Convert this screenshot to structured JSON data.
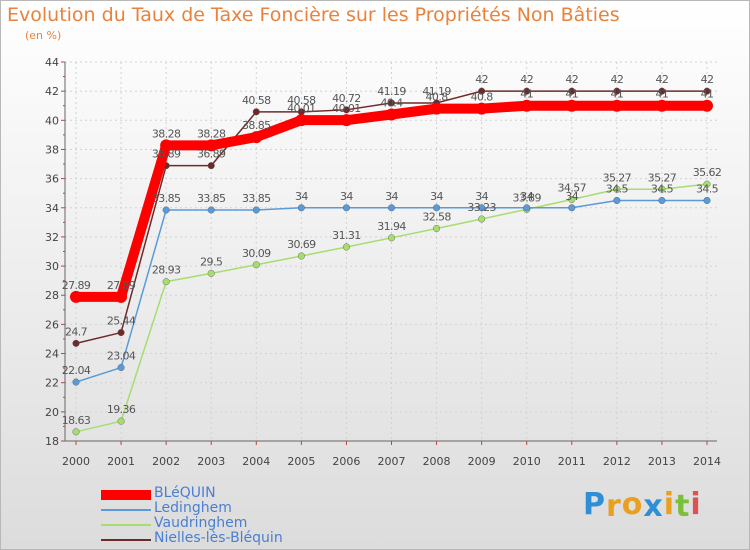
{
  "chart_data": {
    "type": "line",
    "title": "Evolution du Taux de Taxe Foncière sur les Propriétés Non Bâties",
    "unit_label": "(en %)",
    "xlabel": "",
    "ylabel": "",
    "ylim": [
      18,
      44
    ],
    "y_ticks": [
      "18",
      "20",
      "22",
      "24",
      "26",
      "28",
      "30",
      "32",
      "34",
      "36",
      "38",
      "40",
      "42",
      "44"
    ],
    "x": [
      "2000",
      "2001",
      "2002",
      "2003",
      "2004",
      "2005",
      "2006",
      "2007",
      "2008",
      "2009",
      "2010",
      "2011",
      "2012",
      "2013",
      "2014"
    ],
    "grid": true,
    "series": [
      {
        "name": "Vaudringhem",
        "color": "#a6dd6e",
        "values": [
          18.63,
          19.36,
          28.93,
          29.5,
          30.09,
          30.69,
          31.31,
          31.94,
          32.58,
          33.23,
          33.89,
          34.57,
          35.27,
          35.27,
          35.62
        ],
        "labels": [
          "18.63",
          "19.36",
          "28.93",
          "29.5",
          "30.09",
          "30.69",
          "31.31",
          "31.94",
          "32.58",
          "33.23",
          "33.89",
          "34.57",
          "35.27",
          "35.27",
          "35.62"
        ]
      },
      {
        "name": "Ledinghem",
        "color": "#5b9ad8",
        "values": [
          22.04,
          23.04,
          33.85,
          33.85,
          33.85,
          34,
          34,
          34,
          34,
          34,
          34,
          34,
          34.5,
          34.5,
          34.5
        ],
        "labels": [
          "22.04",
          "23.04",
          "33.85",
          "33.85",
          "33.85",
          "34",
          "34",
          "34",
          "34",
          "34",
          "34",
          "34",
          "34.5",
          "34.5",
          "34.5"
        ]
      },
      {
        "name": "Nielles-lès-Bléquin",
        "color": "#6e2a2a",
        "values": [
          24.7,
          25.44,
          36.89,
          36.89,
          40.58,
          40.58,
          40.72,
          41.19,
          41.19,
          42,
          42,
          42,
          42,
          42,
          42
        ],
        "labels": [
          "24.7",
          "25.44",
          "36.89",
          "36.89",
          "40.58",
          "40.58",
          "40.72",
          "41.19",
          "41.19",
          "42",
          "42",
          "42",
          "42",
          "42",
          "42"
        ]
      },
      {
        "name": "BLéQUIN",
        "color": "#ff0000",
        "values": [
          27.89,
          27.89,
          38.28,
          38.28,
          38.85,
          40.01,
          40.01,
          40.4,
          40.8,
          40.8,
          41,
          41,
          41,
          41,
          41
        ],
        "labels": [
          "27.89",
          "27.89",
          "38.28",
          "38.28",
          "38.85",
          "40.01",
          "40.01",
          "40.4",
          "40.8",
          "40.8",
          "41",
          "41",
          "41",
          "41",
          "41"
        ]
      }
    ],
    "legend": {
      "position": "bottom-left",
      "entries": [
        "BLéQUIN",
        "Ledinghem",
        "Vaudringhem",
        "Nielles-lès-Bléquin"
      ]
    }
  },
  "logo": {
    "text": "Proxiti",
    "letters": [
      "P",
      "r",
      "o",
      "x",
      "i",
      "t",
      "i"
    ],
    "colors": [
      "#2e8fd6",
      "#e8a01e",
      "#e8a01e",
      "#2e8fd6",
      "#e8a01e",
      "#7cbf3a",
      "#e05050"
    ]
  }
}
